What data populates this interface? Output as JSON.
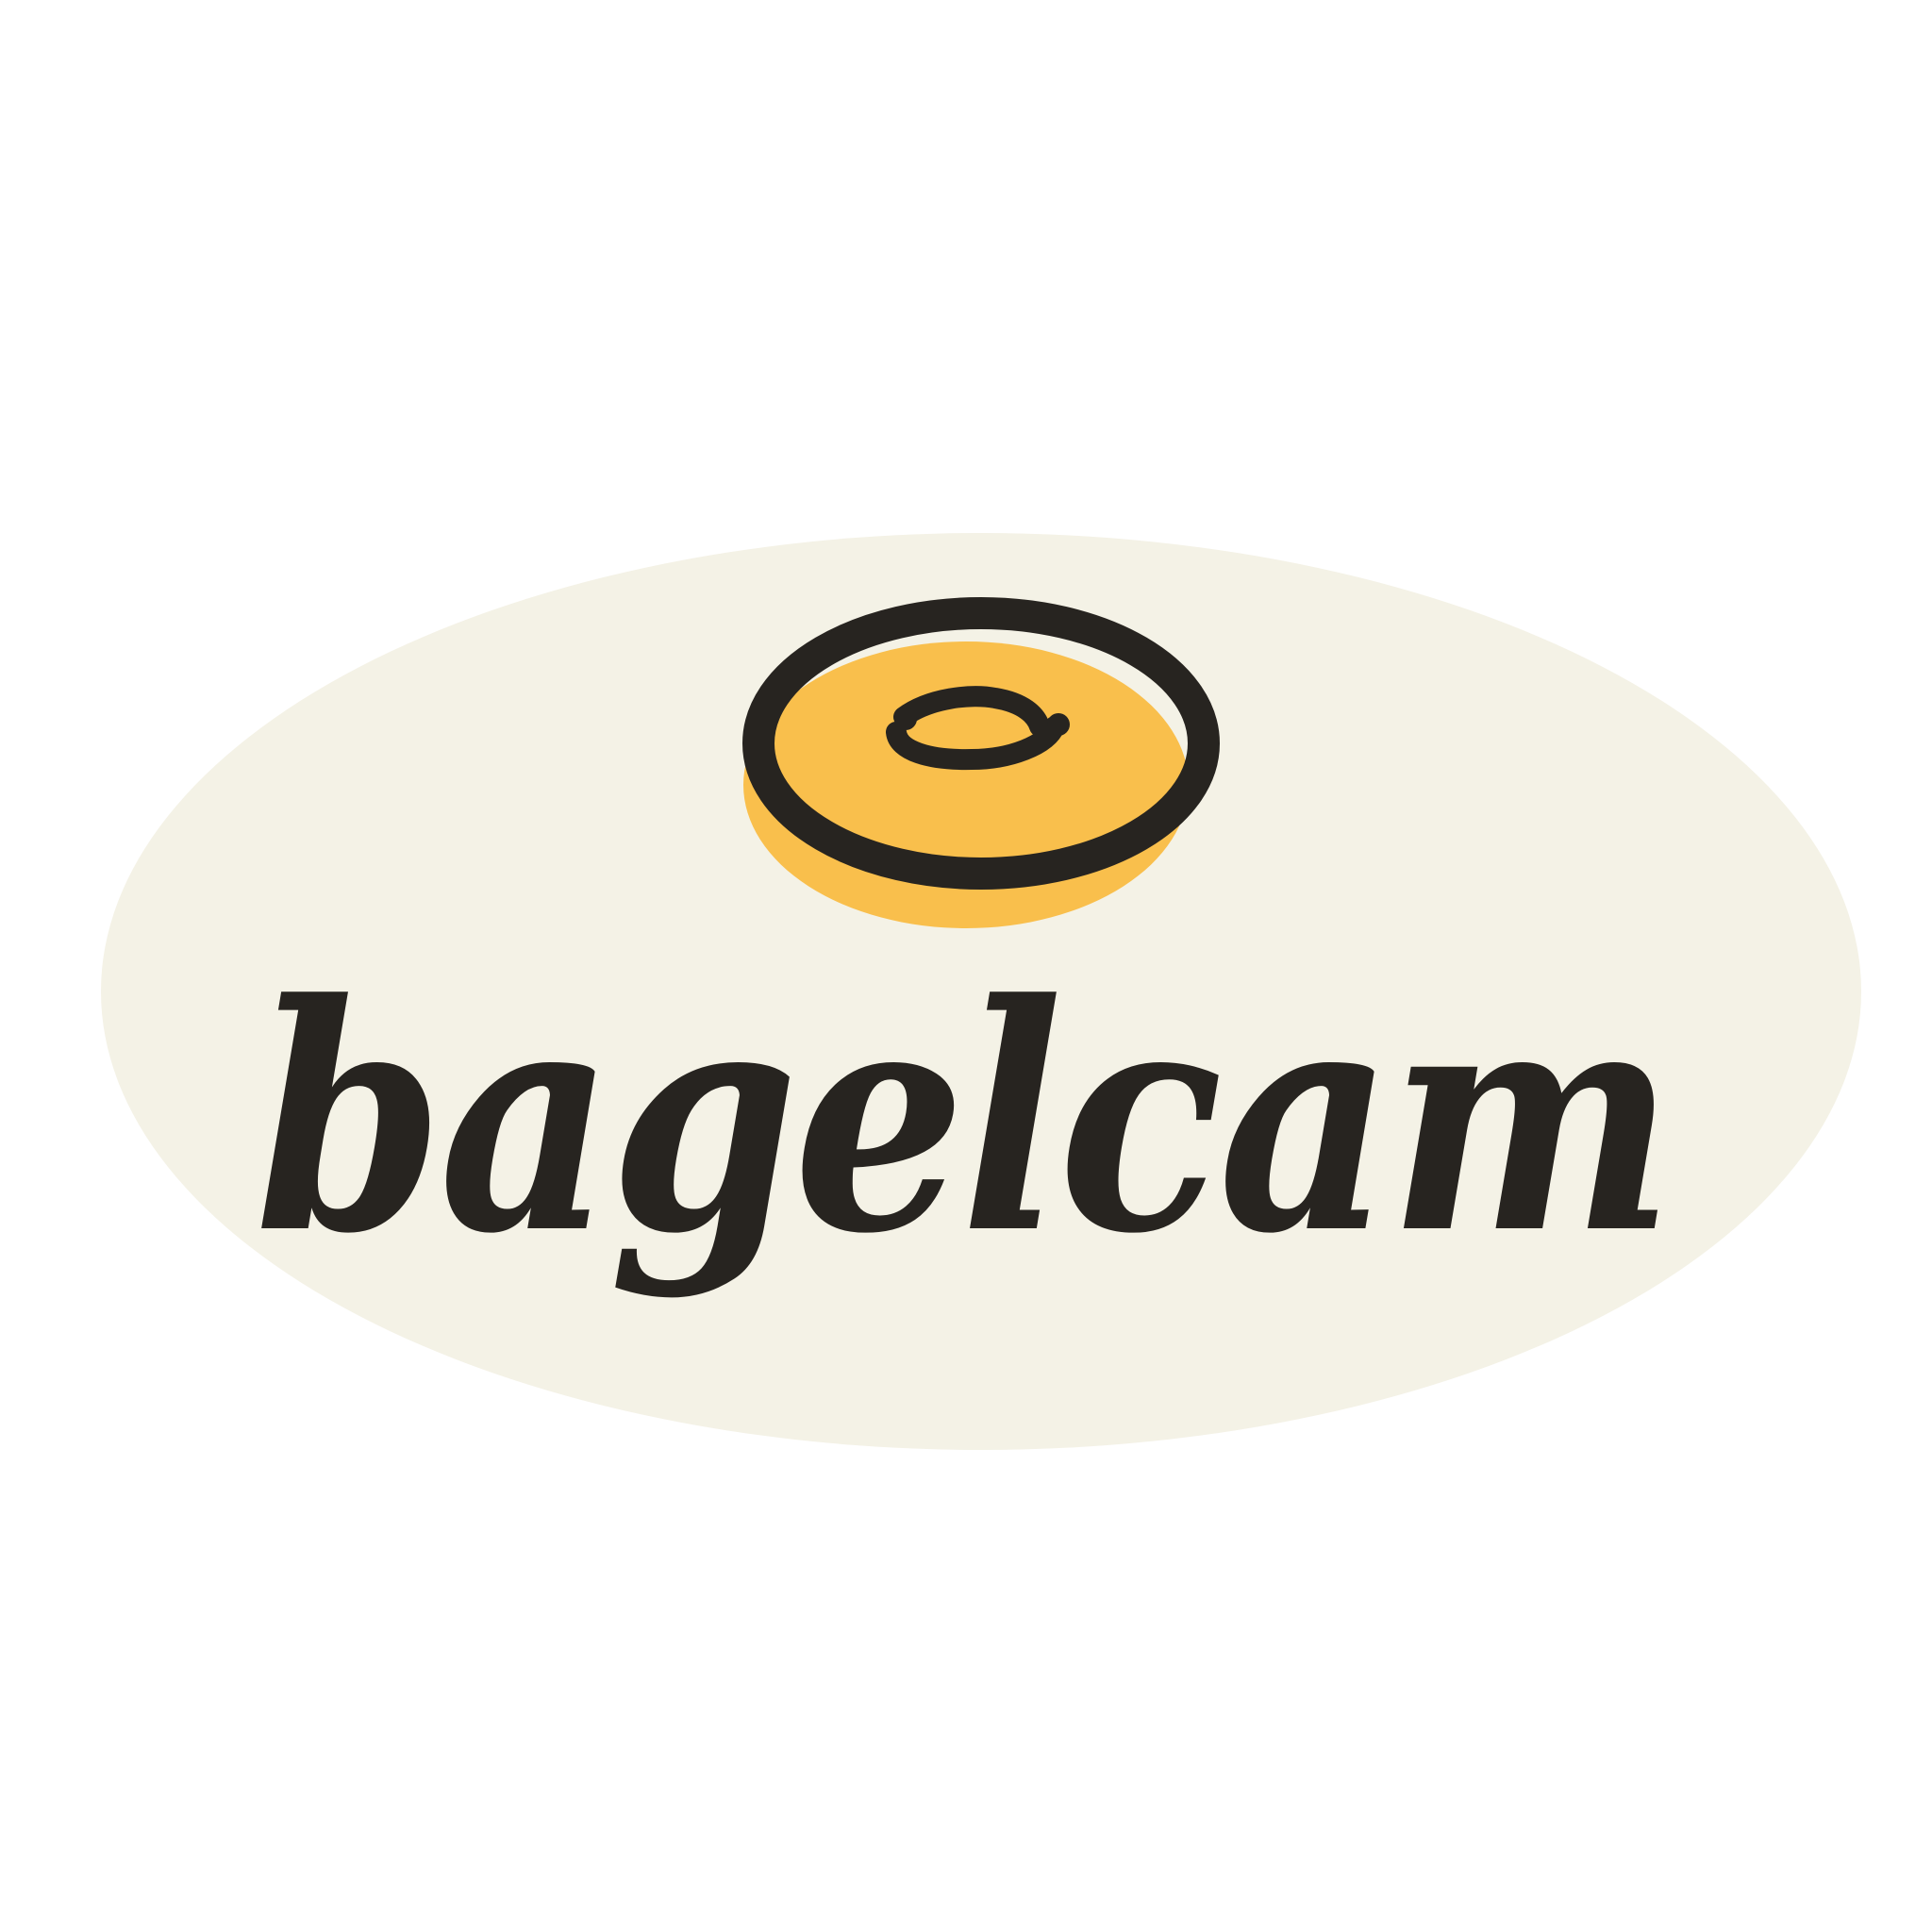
{
  "logo": {
    "wordmark": "bagelcam",
    "icon": "bagel-icon",
    "colors": {
      "background": "#ffffff",
      "badge": "#f4f2e6",
      "accent": "#f9bf4c",
      "ink": "#272420"
    }
  }
}
